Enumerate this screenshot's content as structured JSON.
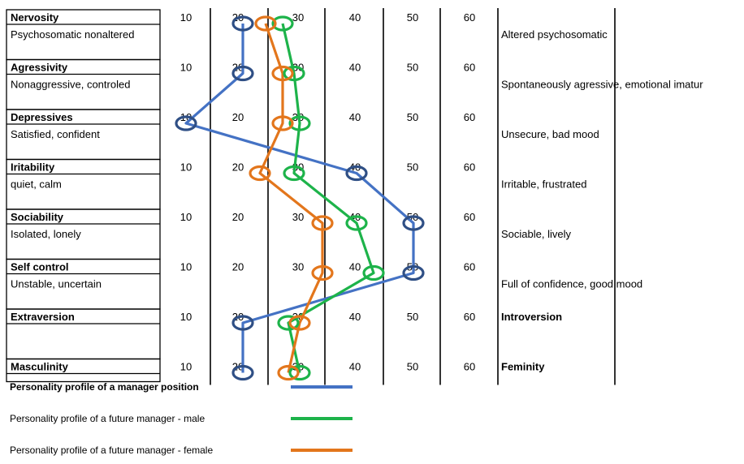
{
  "chart_data": {
    "type": "line",
    "scale_ticks": [
      10,
      20,
      30,
      40,
      50,
      60
    ],
    "traits": [
      {
        "name": "Nervosity",
        "low": "Psychosomatic nonaltered",
        "high": "Altered psychosomatic",
        "high_bold": false
      },
      {
        "name": "Agressivity",
        "low": "Nonaggressive, controled",
        "high": "Spontaneously agressive, emotional imatur",
        "high_bold": false
      },
      {
        "name": "Depressives",
        "low": "Satisfied, confident",
        "high": "Unsecure, bad mood",
        "high_bold": false
      },
      {
        "name": "Iritability",
        "low": "quiet, calm",
        "high": "Irritable, frustrated",
        "high_bold": false
      },
      {
        "name": "Sociability",
        "low": "Isolated, lonely",
        "high": "Sociable, lively",
        "high_bold": false
      },
      {
        "name": "Self control",
        "low": "Unstable, uncertain",
        "high": "Full of confidence, good mood",
        "high_bold": false
      },
      {
        "name": "Extraversion",
        "low": "",
        "high": "Introversion",
        "high_bold": true
      },
      {
        "name": "Masculinity",
        "low": "",
        "high": "Feminity",
        "high_bold": true
      }
    ],
    "series": [
      {
        "name": "Personality profile of a manager position",
        "color": "#4472c4",
        "marker_color": "#2f4f85",
        "values": [
          20,
          20,
          10,
          40,
          50,
          50,
          20,
          20
        ],
        "legend_bold": true
      },
      {
        "name": "Personality profile of a future manager - male",
        "color": "#1db34a",
        "marker_color": "#1db34a",
        "values": [
          27,
          29,
          30,
          29,
          40,
          43,
          28,
          30
        ],
        "legend_bold": false
      },
      {
        "name": "Personality profile of a future manager - female",
        "color": "#e3761c",
        "marker_color": "#e3761c",
        "values": [
          24,
          27,
          27,
          23,
          34,
          34,
          30,
          28
        ],
        "legend_bold": false
      }
    ]
  }
}
